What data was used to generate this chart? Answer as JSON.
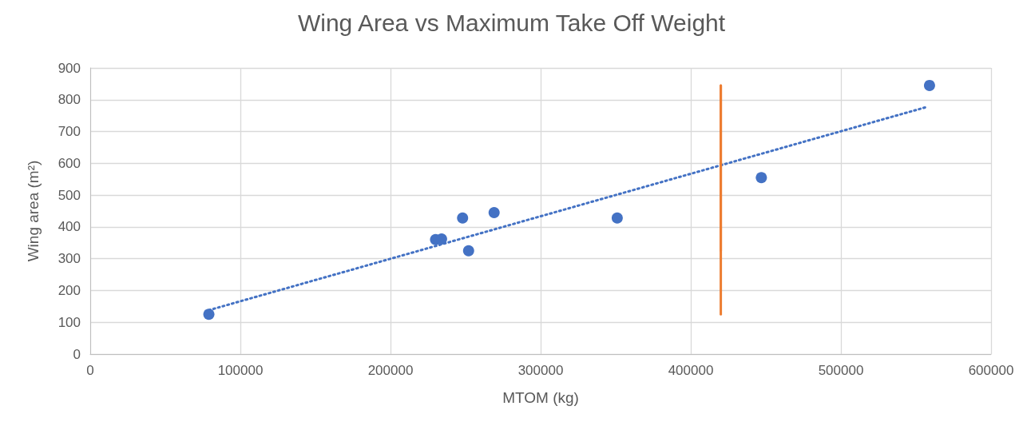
{
  "chart_data": {
    "type": "scatter",
    "title": "Wing Area vs Maximum Take Off Weight",
    "xlabel": "MTOM (kg)",
    "ylabel": "Wing area (m²)",
    "xlim": [
      0,
      600000
    ],
    "xticks": [
      0,
      100000,
      200000,
      300000,
      400000,
      500000,
      600000
    ],
    "ylim": [
      0,
      900
    ],
    "yticks": [
      0,
      100,
      200,
      300,
      400,
      500,
      600,
      700,
      800,
      900
    ],
    "grid": true,
    "marker": "circle",
    "series": [
      {
        "color": "#4472c4",
        "x": [
          79000,
          230000,
          234000,
          248000,
          252000,
          269000,
          351000,
          447000,
          559000
        ],
        "values": [
          125,
          360,
          362,
          428,
          325,
          445,
          428,
          555,
          845
        ]
      },
      {
        "type": "line",
        "color": "#4472c4",
        "line_style": "dotted",
        "marker": "none",
        "x": [
          79000,
          557000
        ],
        "values": [
          138,
          777
        ]
      },
      {
        "type": "line",
        "color": "#ed7d31",
        "line_style": "solid",
        "marker": "none",
        "x": [
          420000,
          420000
        ],
        "values": [
          125,
          845
        ]
      },
      {
        "type": "line",
        "color": "#ed7d31",
        "line_style": "solid",
        "marker": "none",
        "x": [
          420000,
          420000
        ],
        "values": [
          325,
          845
        ]
      }
    ]
  }
}
